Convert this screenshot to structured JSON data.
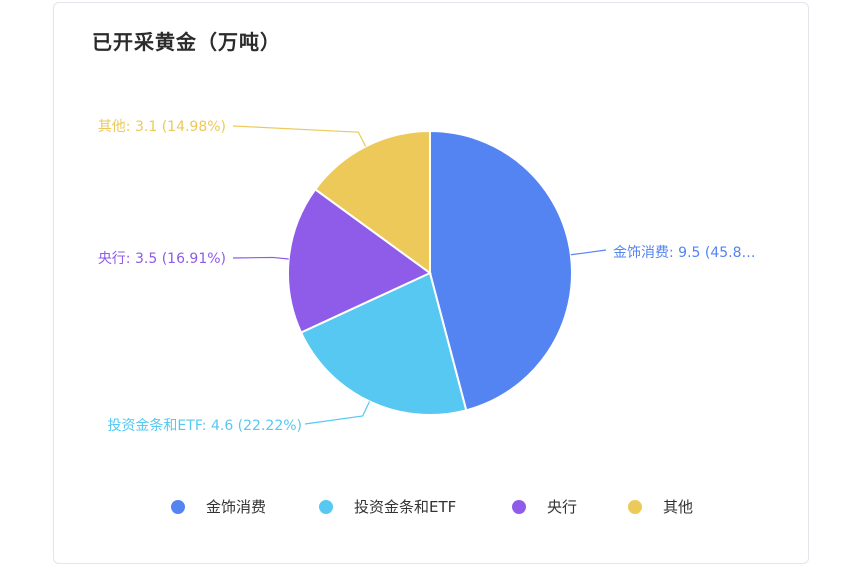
{
  "title": "已开采黄金（万吨）",
  "chart_data": {
    "type": "pie",
    "title": "已开采黄金（万吨）",
    "slices": [
      {
        "name": "金饰消费",
        "value": 9.5,
        "percent": "45.8…",
        "color": "#5484f2",
        "label": "金饰消费: 9.5 (45.8…"
      },
      {
        "name": "投资金条和ETF",
        "value": 4.6,
        "percent": "22.22%",
        "color": "#56c8f2",
        "label": "投资金条和ETF: 4.6 (22.22%)"
      },
      {
        "name": "央行",
        "value": 3.5,
        "percent": "16.91%",
        "color": "#8e5ce8",
        "label": "央行: 3.5 (16.91%)"
      },
      {
        "name": "其他",
        "value": 3.1,
        "percent": "14.98%",
        "color": "#edc95a",
        "label": "其他: 3.1 (14.98%)"
      }
    ],
    "legend": [
      "金饰消费",
      "投资金条和ETF",
      "央行",
      "其他"
    ],
    "legend_position": "bottom"
  }
}
